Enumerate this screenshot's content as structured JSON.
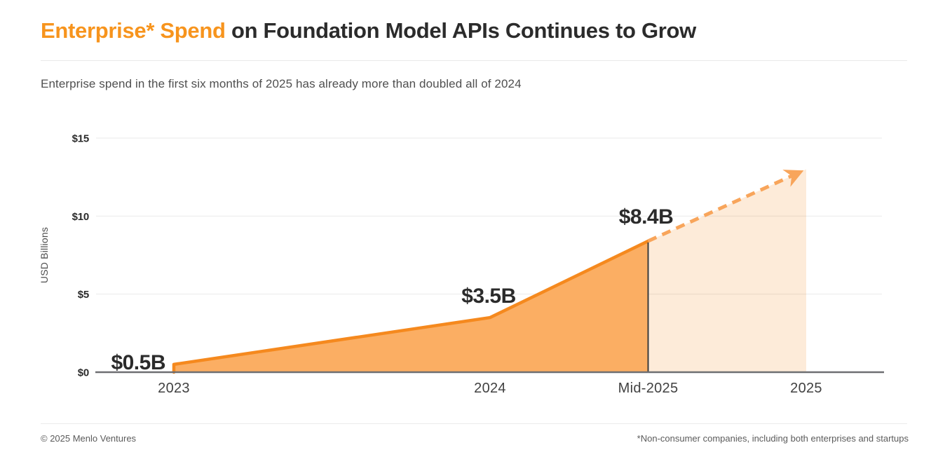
{
  "header": {
    "title_highlight": "Enterprise* Spend",
    "title_rest": " on Foundation Model APIs Continues to Grow",
    "subtitle": "Enterprise spend in the first six months of 2025 has already more than doubled all of 2024"
  },
  "footer": {
    "copyright": "© 2025 Menlo Ventures",
    "footnote": "*Non-consumer companies, including both enterprises and startups"
  },
  "colors": {
    "accent": "#F7941D",
    "line": "#F5891E",
    "area_fill": "#FBAE63",
    "projection_line": "#F8A55B",
    "projection_fill_base": "#F68A1E",
    "projection_fill_opacity": 0.17,
    "gridline": "#F0F0F0",
    "axis_line": "#6E6F72",
    "divider": "#3B3B3B",
    "dark_text": "#2B2B2B",
    "muted_text": "#4F4F4F",
    "category_text": "#414141",
    "footer_text": "#5B5B5B"
  },
  "chart_data": {
    "type": "area",
    "title": "Enterprise* Spend on Foundation Model APIs Continues to Grow",
    "subtitle": "Enterprise spend in the first six months of 2025 has already more than doubled all of 2024",
    "xlabel": "",
    "ylabel": "USD Billions",
    "categories": [
      "2023",
      "2024",
      "Mid-2025",
      "2025"
    ],
    "x_pos": [
      0,
      1,
      1.5,
      2
    ],
    "values_usd_billions": [
      0.5,
      3.5,
      8.4,
      13
    ],
    "value_labels": [
      "$0.5B",
      "$3.5B",
      "$8.4B",
      ""
    ],
    "actual_through_index": 2,
    "projection": {
      "from_category": "Mid-2025",
      "to_category": "2025",
      "style": "dashed-arrow",
      "end_value_estimated": 13
    },
    "ylim": [
      0,
      15
    ],
    "yticks": [
      0,
      5,
      10,
      15
    ],
    "ytick_labels": [
      "$0",
      "$5",
      "$10",
      "$15"
    ],
    "grid": true,
    "legend": false
  }
}
